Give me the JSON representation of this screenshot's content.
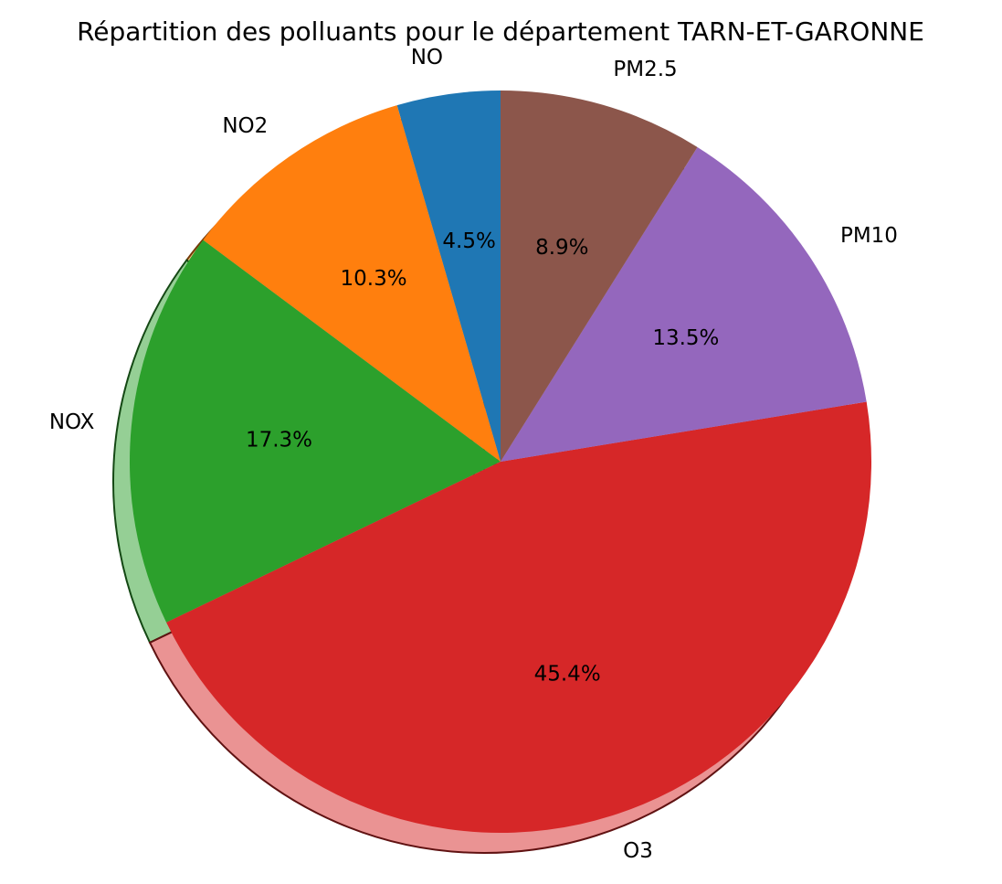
{
  "chart_data": {
    "type": "pie",
    "title": "Répartition des polluants pour le département TARN-ET-GARONNE",
    "categories": [
      "NO",
      "NO2",
      "NOX",
      "O3",
      "PM10",
      "PM2.5"
    ],
    "values": [
      4.5,
      10.3,
      17.3,
      45.4,
      13.5,
      8.9
    ],
    "percent_labels": [
      "4.5%",
      "10.3%",
      "17.3%",
      "45.4%",
      "13.5%",
      "8.9%"
    ],
    "colors": [
      "#1f77b4",
      "#ff7f0e",
      "#2ca02c",
      "#d62728",
      "#9467bd",
      "#8c564b"
    ],
    "start_angle_deg": 90,
    "direction": "counterclockwise",
    "shadow": true,
    "legend": false
  }
}
